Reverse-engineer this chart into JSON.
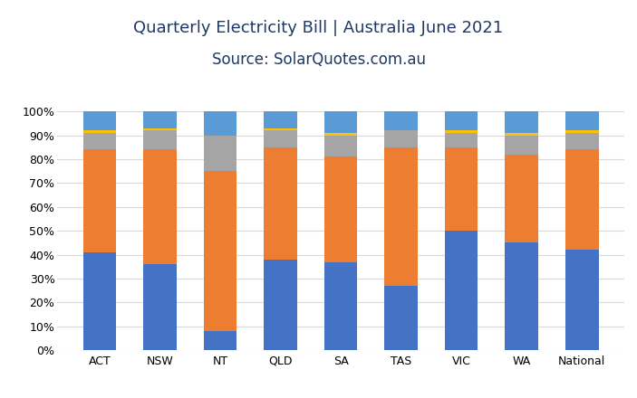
{
  "categories": [
    "ACT",
    "NSW",
    "NT",
    "QLD",
    "SA",
    "TAS",
    "VIC",
    "WA",
    "National"
  ],
  "series": {
    "< $500": [
      41,
      36,
      8,
      38,
      37,
      27,
      50,
      45,
      42
    ],
    "$500 - $1000": [
      43,
      48,
      67,
      47,
      44,
      58,
      35,
      37,
      42
    ],
    "$1000- $2000": [
      7,
      8,
      15,
      7,
      9,
      7,
      6,
      8,
      7
    ],
    "$2000+": [
      1,
      1,
      0,
      1,
      1,
      0,
      1,
      1,
      1
    ],
    "Don't know": [
      8,
      7,
      10,
      7,
      9,
      8,
      8,
      9,
      8
    ]
  },
  "colors": {
    "< $500": "#4472C4",
    "$500 - $1000": "#ED7D31",
    "$1000- $2000": "#A5A5A5",
    "$2000+": "#FFC000",
    "Don't know": "#5B9BD5"
  },
  "title_line1": "Quarterly Electricity Bill | Australia June 2021",
  "title_line2": "Source: SolarQuotes.com.au",
  "ylim": [
    0,
    100
  ],
  "ytick_labels": [
    "0%",
    "10%",
    "20%",
    "30%",
    "40%",
    "50%",
    "60%",
    "70%",
    "80%",
    "90%",
    "100%"
  ],
  "ytick_values": [
    0,
    10,
    20,
    30,
    40,
    50,
    60,
    70,
    80,
    90,
    100
  ],
  "background_color": "#FFFFFF",
  "grid_color": "#D9D9D9",
  "title_fontsize": 13,
  "subtitle_fontsize": 12,
  "axis_fontsize": 9,
  "legend_fontsize": 8.5,
  "bar_width": 0.55,
  "title_color": "#1F3864"
}
